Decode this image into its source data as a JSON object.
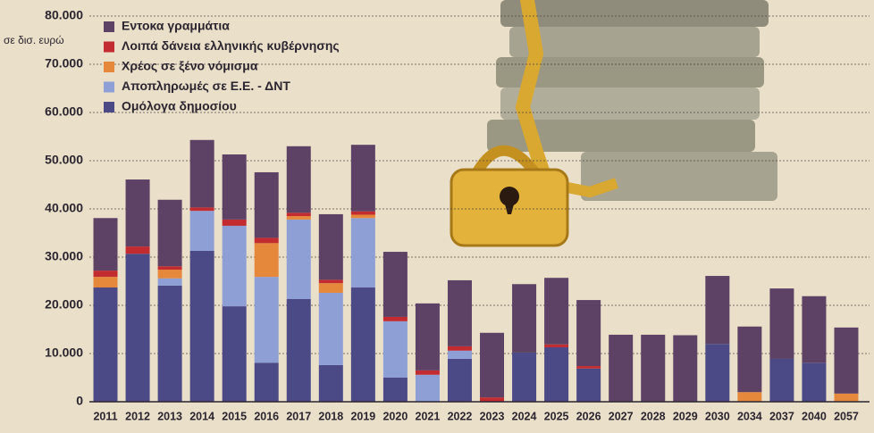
{
  "chart_data": {
    "type": "stacked-bar",
    "subtitle": "σε δισ. ευρώ",
    "categories": [
      "2011",
      "2012",
      "2013",
      "2014",
      "2015",
      "2016",
      "2017",
      "2018",
      "2019",
      "2020",
      "2021",
      "2022",
      "2023",
      "2024",
      "2025",
      "2026",
      "2027",
      "2028",
      "2029",
      "2030",
      "2034",
      "2037",
      "2040",
      "2057"
    ],
    "series": [
      {
        "name": "Ομόλογα δημοσίου",
        "color": "#4b4a86",
        "values": [
          23700,
          30700,
          24100,
          31300,
          19800,
          8100,
          21300,
          7600,
          23700,
          5000,
          0,
          8900,
          0,
          10200,
          11300,
          6900,
          0,
          0,
          0,
          12000,
          0,
          8900,
          8100,
          0
        ]
      },
      {
        "name": "Αποπληρωμές σε Ε.Ε. - ΔΝΤ",
        "color": "#8e9fd6",
        "values": [
          0,
          0,
          1500,
          8300,
          16700,
          17800,
          16500,
          15000,
          14400,
          11700,
          5600,
          1700,
          0,
          0,
          0,
          0,
          0,
          0,
          0,
          0,
          0,
          0,
          0,
          0
        ]
      },
      {
        "name": "Χρέος σε ξένο νόμισμα",
        "color": "#e5883b",
        "values": [
          2200,
          0,
          1800,
          0,
          0,
          7000,
          700,
          2000,
          700,
          0,
          0,
          0,
          0,
          0,
          0,
          0,
          0,
          0,
          0,
          0,
          2000,
          0,
          0,
          1700
        ]
      },
      {
        "name": "Λοιπά δάνεια ελληνικής κυβέρνησης",
        "color": "#c22b30",
        "values": [
          1300,
          1500,
          700,
          700,
          1300,
          1100,
          700,
          700,
          700,
          900,
          900,
          900,
          900,
          0,
          600,
          500,
          0,
          0,
          0,
          0,
          0,
          0,
          0,
          0
        ]
      },
      {
        "name": "Εντοκα γραμμάτια",
        "color": "#5d4266",
        "values": [
          10900,
          13900,
          13800,
          14000,
          13500,
          13600,
          13800,
          13600,
          13800,
          13500,
          13900,
          13700,
          13400,
          14200,
          13800,
          13700,
          13900,
          13900,
          13800,
          14100,
          13600,
          14600,
          13800,
          13700
        ]
      }
    ],
    "ylim": [
      0,
      80000
    ],
    "yticks": [
      0,
      {
        "value": 10000,
        "label": "10.000"
      },
      {
        "value": 20000,
        "label": "20.000"
      },
      {
        "value": 30000,
        "label": "30.000"
      },
      {
        "value": 40000,
        "label": "40.000"
      },
      {
        "value": 50000,
        "label": "50.000"
      },
      {
        "value": 60000,
        "label": "60.000"
      },
      {
        "value": 70000,
        "label": "70.000"
      },
      {
        "value": 80000,
        "label": "80.000"
      }
    ],
    "grid": true,
    "legend": "top-left"
  }
}
